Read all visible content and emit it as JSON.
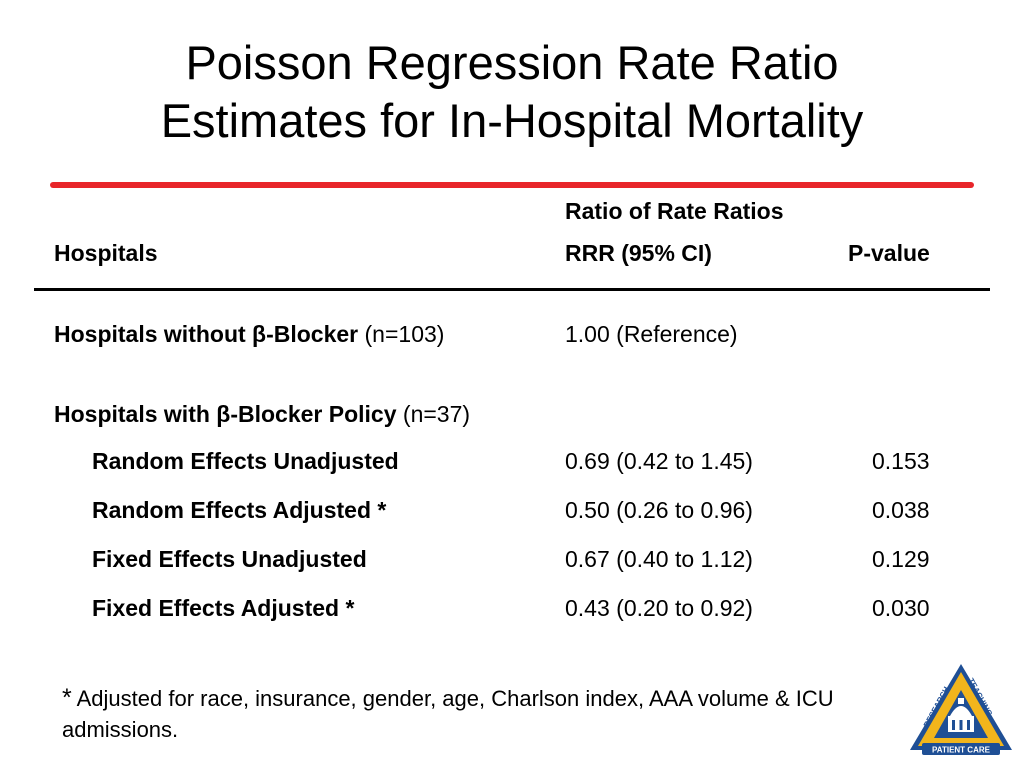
{
  "title": {
    "line1": "Poisson Regression Rate Ratio",
    "line2": "Estimates for In-Hospital Mortality"
  },
  "colors": {
    "accent_rule": "#e8262a",
    "logo_blue": "#1f4f95",
    "logo_gold": "#f2b51c"
  },
  "table": {
    "header": {
      "group_label": "Ratio of Rate Ratios",
      "col_hospitals": "Hospitals",
      "col_rrr": "RRR (95% CI)",
      "col_pvalue": "P-value"
    },
    "reference_row": {
      "label_bold": "Hospitals without β-Blocker",
      "label_n": " (n=103)",
      "rrr": "1.00 (Reference)",
      "pvalue": ""
    },
    "group_row": {
      "label_bold": "Hospitals with β-Blocker Policy",
      "label_n": " (n=37)"
    },
    "rows": [
      {
        "label": "Random Effects Unadjusted",
        "rrr": "0.69 (0.42 to 1.45)",
        "pvalue": "0.153"
      },
      {
        "label": "Random Effects Adjusted *",
        "rrr": "0.50 (0.26 to 0.96)",
        "pvalue": "0.038"
      },
      {
        "label": "Fixed Effects Unadjusted",
        "rrr": "0.67 (0.40 to 1.12)",
        "pvalue": "0.129"
      },
      {
        "label": "Fixed Effects Adjusted *",
        "rrr": "0.43 (0.20 to 0.92)",
        "pvalue": "0.030"
      }
    ]
  },
  "footnote": {
    "star": "*",
    "text": " Adjusted for race, insurance, gender, age, Charlson index, AAA volume & ICU admissions."
  },
  "logo": {
    "icon": "research-teaching-patient-care-logo",
    "left_text": "RESEARCH",
    "right_text": "TEACHING",
    "bottom_text": "PATIENT CARE"
  }
}
